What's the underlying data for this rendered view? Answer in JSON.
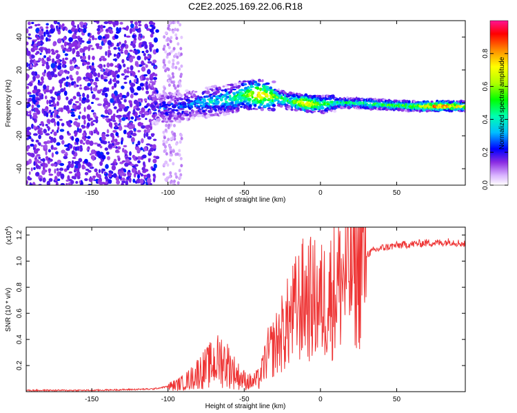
{
  "title": "C2E2.2025.169.22.06.R18",
  "chart_data": [
    {
      "type": "heatmap",
      "xlabel": "Height of straight line (km)",
      "ylabel": "Frequency (Hz)",
      "xlim": [
        -193,
        95
      ],
      "ylim": [
        -50,
        50
      ],
      "x_ticks": [
        -150,
        -100,
        -50,
        0,
        50
      ],
      "y_ticks": [
        -40,
        -20,
        0,
        20,
        40
      ],
      "colorbar": {
        "label": "Normalized spectral amplitude",
        "range": [
          0,
          1
        ],
        "ticks": [
          0.0,
          0.2,
          0.4,
          0.6,
          0.8
        ],
        "tick_labels": [
          "0.0",
          "0.2",
          "0.4",
          "0.6",
          "0.8"
        ],
        "colors": [
          "#ffffff",
          "#d9b3ff",
          "#8a2be2",
          "#0000ff",
          "#00bfff",
          "#00ffb0",
          "#00ff00",
          "#b0ff00",
          "#ffff00",
          "#ff8c00",
          "#ff0000",
          "#ff1493"
        ]
      },
      "ridge": {
        "x": [
          -110,
          -100,
          -90,
          -80,
          -70,
          -60,
          -50,
          -40,
          -30,
          -20,
          -10,
          0,
          10,
          20,
          40,
          60,
          80,
          95
        ],
        "freq": [
          -4,
          -3,
          -2,
          0,
          1,
          2,
          5,
          5,
          4,
          1,
          0,
          -1,
          0,
          0,
          -1,
          -2,
          -2,
          -2
        ],
        "amplitude": [
          0.25,
          0.3,
          0.3,
          0.35,
          0.4,
          0.45,
          0.55,
          0.8,
          0.6,
          0.5,
          0.85,
          0.6,
          0.5,
          0.5,
          0.55,
          0.6,
          0.9,
          0.7
        ]
      },
      "noise_region": {
        "x_range": [
          -193,
          -107
        ],
        "freq_range": [
          -50,
          50
        ],
        "amplitude": [
          0.15,
          0.3
        ]
      }
    },
    {
      "type": "line",
      "xlabel": "Height of straight line (km)",
      "ylabel": "SNR (10 * v/v)",
      "multiplier": "(x10",
      "multiplier_exp": "4",
      "multiplier_close": ")",
      "xlim": [
        -193,
        95
      ],
      "ylim": [
        0,
        1.26
      ],
      "x_ticks": [
        -150,
        -100,
        -50,
        0,
        50
      ],
      "y_ticks": [
        0.2,
        0.4,
        0.6,
        0.8,
        1.0,
        1.2
      ],
      "y_tick_labels": [
        "0.2",
        "0.4",
        "0.6",
        "0.8",
        "1.0",
        "1.2"
      ],
      "color": "#ee3333",
      "series": [
        {
          "x": [
            -193,
            -150,
            -110,
            -105,
            -100,
            -95,
            -90,
            -85,
            -80,
            -75,
            -70,
            -65,
            -60,
            -55,
            -50,
            -45,
            -40,
            -35,
            -30,
            -25,
            -20,
            -15,
            -10,
            -5,
            0,
            5,
            10,
            15,
            20,
            25,
            30,
            35,
            40,
            50,
            60,
            70,
            80,
            85,
            90,
            95
          ],
          "y": [
            0.01,
            0.01,
            0.02,
            0.03,
            0.04,
            0.05,
            0.07,
            0.1,
            0.15,
            0.18,
            0.22,
            0.25,
            0.2,
            0.13,
            0.09,
            0.07,
            0.1,
            0.28,
            0.35,
            0.45,
            0.55,
            0.65,
            0.72,
            0.7,
            0.68,
            0.72,
            0.8,
            0.88,
            0.95,
            1.0,
            1.05,
            1.08,
            1.1,
            1.12,
            1.13,
            1.14,
            1.14,
            1.15,
            1.14,
            1.13
          ]
        }
      ]
    }
  ]
}
